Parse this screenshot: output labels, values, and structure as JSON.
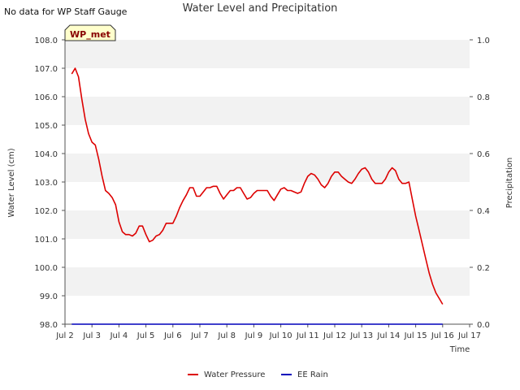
{
  "header": {
    "title": "Water Level and Precipitation",
    "note": "No data for WP Staff Gauge"
  },
  "colors": {
    "water_pressure": "#dd0000",
    "ee_rain": "#0000bb",
    "band": "#f2f2f2",
    "site_label_bg": "#ffffcc",
    "site_label_text": "#880000"
  },
  "chart_data": {
    "type": "line",
    "title": "Water Level and Precipitation",
    "xlabel": "Time",
    "ylabel": "Water Level (cm)",
    "ylabel_right": "Precipitation",
    "site_label": "WP_met",
    "xlim": [
      "Jul 2",
      "Jul 17"
    ],
    "ylim": [
      98.0,
      108.0
    ],
    "ylim_right": [
      0.0,
      1.0
    ],
    "x_ticks": [
      "Jul 2",
      "Jul 3",
      "Jul 4",
      "Jul 5",
      "Jul 6",
      "Jul 7",
      "Jul 8",
      "Jul 9",
      "Jul 10",
      "Jul 11",
      "Jul 12",
      "Jul 13",
      "Jul 14",
      "Jul 15",
      "Jul 16",
      "Jul 17"
    ],
    "y_ticks": [
      "98.0",
      "99.0",
      "100.0",
      "101.0",
      "102.0",
      "103.0",
      "104.0",
      "105.0",
      "106.0",
      "107.0",
      "108.0"
    ],
    "y_ticks_right": [
      "0.0",
      "0.2",
      "0.4",
      "0.6",
      "0.8",
      "1.0"
    ],
    "grid": "horizontal bands",
    "legend": "bottom",
    "series": [
      {
        "name": "Water Pressure",
        "axis": "left",
        "points": [
          [
            "2024-07-02 06:00",
            106.8
          ],
          [
            "2024-07-02 09:00",
            107.0
          ],
          [
            "2024-07-02 12:00",
            106.7
          ],
          [
            "2024-07-02 15:00",
            105.9
          ],
          [
            "2024-07-02 18:00",
            105.2
          ],
          [
            "2024-07-02 21:00",
            104.7
          ],
          [
            "2024-07-03 00:00",
            104.4
          ],
          [
            "2024-07-03 03:00",
            104.3
          ],
          [
            "2024-07-03 06:00",
            103.8
          ],
          [
            "2024-07-03 09:00",
            103.2
          ],
          [
            "2024-07-03 12:00",
            102.7
          ],
          [
            "2024-07-03 15:00",
            102.6
          ],
          [
            "2024-07-03 18:00",
            102.45
          ],
          [
            "2024-07-03 21:00",
            102.2
          ],
          [
            "2024-07-04 00:00",
            101.6
          ],
          [
            "2024-07-04 03:00",
            101.25
          ],
          [
            "2024-07-04 06:00",
            101.15
          ],
          [
            "2024-07-04 09:00",
            101.15
          ],
          [
            "2024-07-04 12:00",
            101.1
          ],
          [
            "2024-07-04 15:00",
            101.2
          ],
          [
            "2024-07-04 18:00",
            101.45
          ],
          [
            "2024-07-04 21:00",
            101.45
          ],
          [
            "2024-07-05 00:00",
            101.15
          ],
          [
            "2024-07-05 03:00",
            100.9
          ],
          [
            "2024-07-05 06:00",
            100.95
          ],
          [
            "2024-07-05 09:00",
            101.1
          ],
          [
            "2024-07-05 12:00",
            101.15
          ],
          [
            "2024-07-05 15:00",
            101.3
          ],
          [
            "2024-07-05 18:00",
            101.55
          ],
          [
            "2024-07-05 21:00",
            101.55
          ],
          [
            "2024-07-06 00:00",
            101.55
          ],
          [
            "2024-07-06 03:00",
            101.8
          ],
          [
            "2024-07-06 06:00",
            102.1
          ],
          [
            "2024-07-06 09:00",
            102.35
          ],
          [
            "2024-07-06 12:00",
            102.55
          ],
          [
            "2024-07-06 15:00",
            102.8
          ],
          [
            "2024-07-06 18:00",
            102.8
          ],
          [
            "2024-07-06 21:00",
            102.5
          ],
          [
            "2024-07-07 00:00",
            102.5
          ],
          [
            "2024-07-07 03:00",
            102.65
          ],
          [
            "2024-07-07 06:00",
            102.8
          ],
          [
            "2024-07-07 09:00",
            102.8
          ],
          [
            "2024-07-07 12:00",
            102.85
          ],
          [
            "2024-07-07 15:00",
            102.85
          ],
          [
            "2024-07-07 18:00",
            102.6
          ],
          [
            "2024-07-07 21:00",
            102.4
          ],
          [
            "2024-07-08 00:00",
            102.55
          ],
          [
            "2024-07-08 03:00",
            102.7
          ],
          [
            "2024-07-08 06:00",
            102.7
          ],
          [
            "2024-07-08 09:00",
            102.8
          ],
          [
            "2024-07-08 12:00",
            102.8
          ],
          [
            "2024-07-08 15:00",
            102.6
          ],
          [
            "2024-07-08 18:00",
            102.4
          ],
          [
            "2024-07-08 21:00",
            102.45
          ],
          [
            "2024-07-09 00:00",
            102.6
          ],
          [
            "2024-07-09 03:00",
            102.7
          ],
          [
            "2024-07-09 06:00",
            102.7
          ],
          [
            "2024-07-09 09:00",
            102.7
          ],
          [
            "2024-07-09 12:00",
            102.7
          ],
          [
            "2024-07-09 15:00",
            102.5
          ],
          [
            "2024-07-09 18:00",
            102.35
          ],
          [
            "2024-07-09 21:00",
            102.55
          ],
          [
            "2024-07-10 00:00",
            102.75
          ],
          [
            "2024-07-10 03:00",
            102.8
          ],
          [
            "2024-07-10 06:00",
            102.7
          ],
          [
            "2024-07-10 09:00",
            102.7
          ],
          [
            "2024-07-10 12:00",
            102.65
          ],
          [
            "2024-07-10 15:00",
            102.6
          ],
          [
            "2024-07-10 18:00",
            102.65
          ],
          [
            "2024-07-10 21:00",
            102.95
          ],
          [
            "2024-07-11 00:00",
            103.2
          ],
          [
            "2024-07-11 03:00",
            103.3
          ],
          [
            "2024-07-11 06:00",
            103.25
          ],
          [
            "2024-07-11 09:00",
            103.1
          ],
          [
            "2024-07-11 12:00",
            102.9
          ],
          [
            "2024-07-11 15:00",
            102.8
          ],
          [
            "2024-07-11 18:00",
            102.95
          ],
          [
            "2024-07-11 21:00",
            103.2
          ],
          [
            "2024-07-12 00:00",
            103.35
          ],
          [
            "2024-07-12 03:00",
            103.35
          ],
          [
            "2024-07-12 06:00",
            103.2
          ],
          [
            "2024-07-12 09:00",
            103.1
          ],
          [
            "2024-07-12 12:00",
            103.0
          ],
          [
            "2024-07-12 15:00",
            102.95
          ],
          [
            "2024-07-12 18:00",
            103.1
          ],
          [
            "2024-07-12 21:00",
            103.3
          ],
          [
            "2024-07-13 00:00",
            103.45
          ],
          [
            "2024-07-13 03:00",
            103.5
          ],
          [
            "2024-07-13 06:00",
            103.35
          ],
          [
            "2024-07-13 09:00",
            103.1
          ],
          [
            "2024-07-13 12:00",
            102.95
          ],
          [
            "2024-07-13 15:00",
            102.95
          ],
          [
            "2024-07-13 18:00",
            102.95
          ],
          [
            "2024-07-13 21:00",
            103.1
          ],
          [
            "2024-07-14 00:00",
            103.35
          ],
          [
            "2024-07-14 03:00",
            103.5
          ],
          [
            "2024-07-14 06:00",
            103.4
          ],
          [
            "2024-07-14 09:00",
            103.1
          ],
          [
            "2024-07-14 12:00",
            102.95
          ],
          [
            "2024-07-14 15:00",
            102.95
          ],
          [
            "2024-07-14 18:00",
            103.0
          ],
          [
            "2024-07-14 21:00",
            102.4
          ],
          [
            "2024-07-15 00:00",
            101.8
          ],
          [
            "2024-07-15 03:00",
            101.3
          ],
          [
            "2024-07-15 06:00",
            100.8
          ],
          [
            "2024-07-15 09:00",
            100.3
          ],
          [
            "2024-07-15 12:00",
            99.8
          ],
          [
            "2024-07-15 15:00",
            99.4
          ],
          [
            "2024-07-15 18:00",
            99.1
          ],
          [
            "2024-07-15 21:00",
            98.9
          ],
          [
            "2024-07-16 00:00",
            98.7
          ]
        ]
      },
      {
        "name": "EE Rain",
        "axis": "right",
        "points": [
          [
            "2024-07-02 06:00",
            0.0
          ],
          [
            "2024-07-16 00:00",
            0.0
          ]
        ]
      }
    ]
  }
}
